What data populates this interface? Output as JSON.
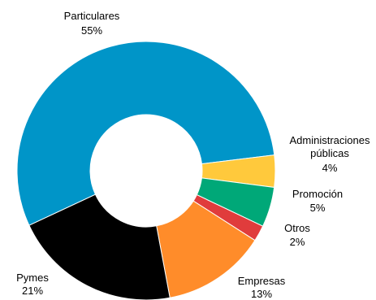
{
  "chart_data": {
    "type": "pie",
    "variant": "donut",
    "slices": [
      {
        "name": "Particulares",
        "value": 55,
        "pct_label": "55%",
        "color": "#0095c8",
        "name_lines": [
          "Particulares"
        ]
      },
      {
        "name": "Administraciones públicas",
        "value": 4,
        "pct_label": "4%",
        "color": "#ffc93c",
        "name_lines": [
          "Administraciones",
          "públicas"
        ]
      },
      {
        "name": "Promoción",
        "value": 5,
        "pct_label": "5%",
        "color": "#00a878",
        "name_lines": [
          "Promoción"
        ]
      },
      {
        "name": "Otros",
        "value": 2,
        "pct_label": "2%",
        "color": "#e03c3c",
        "name_lines": [
          "Otros"
        ]
      },
      {
        "name": "Empresas",
        "value": 13,
        "pct_label": "13%",
        "color": "#ff8c2a",
        "name_lines": [
          "Empresas"
        ]
      },
      {
        "name": "Pymes",
        "value": 21,
        "pct_label": "21%",
        "color": "#000000",
        "name_lines": [
          "Pymes"
        ]
      }
    ],
    "start_angle_deg": -115,
    "direction": "clockwise",
    "legend": "none"
  }
}
